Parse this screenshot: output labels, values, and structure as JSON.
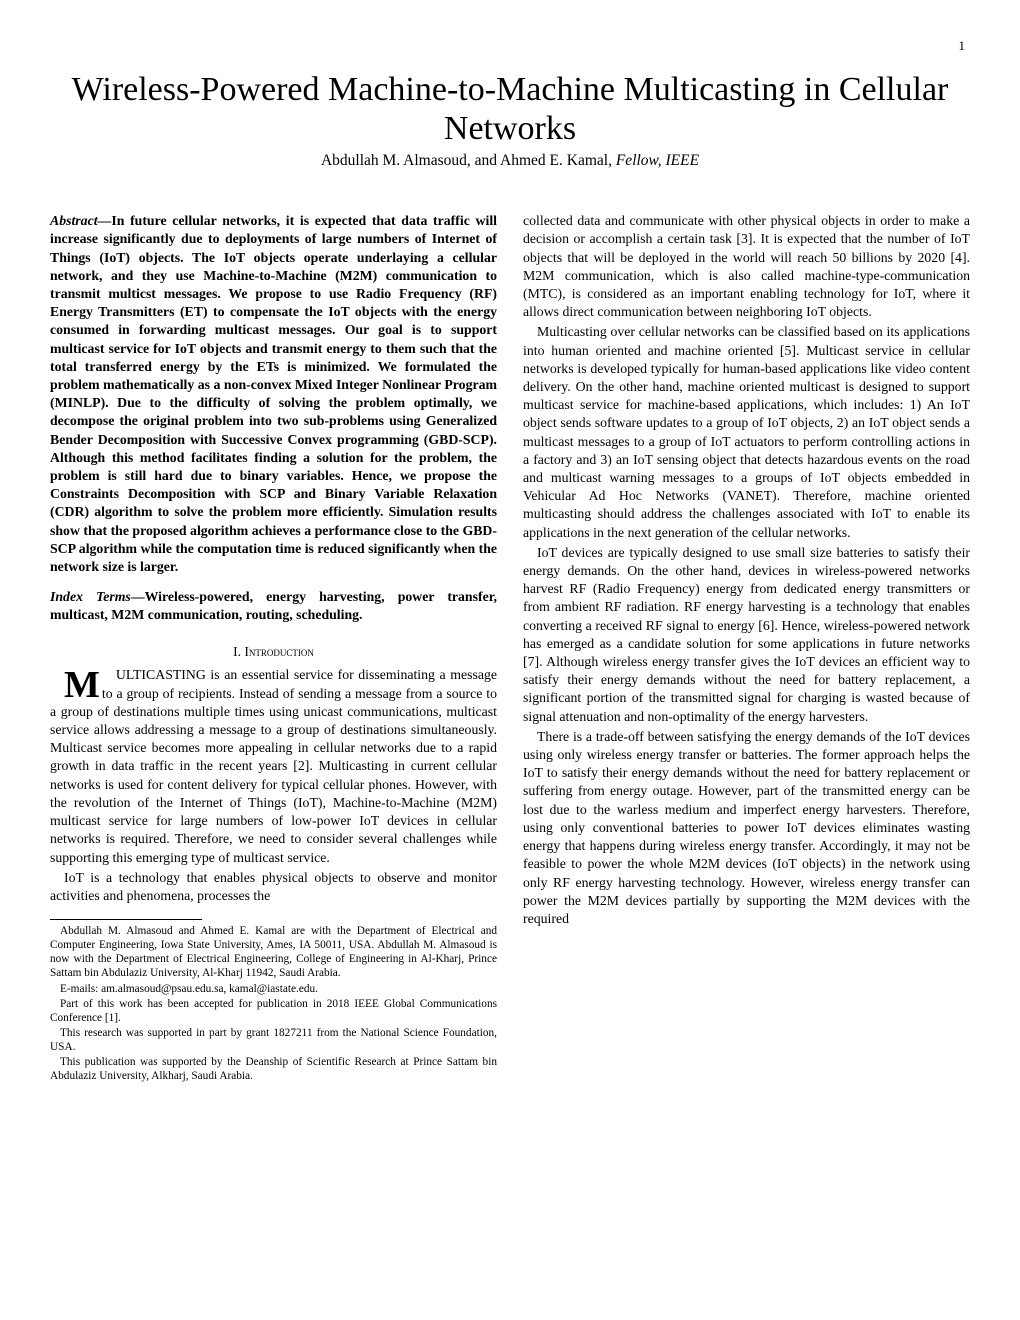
{
  "page_number": "1",
  "title": "Wireless-Powered Machine-to-Machine Multicasting in Cellular Networks",
  "authors_line_prefix": "Abdullah M. Almasoud, and Ahmed E. Kamal, ",
  "authors_fellow": "Fellow, IEEE",
  "abstract_label": "Abstract",
  "abstract_text": "—In future cellular networks, it is expected that data traffic will increase significantly due to deployments of large numbers of Internet of Things (IoT) objects. The IoT objects operate underlaying a cellular network, and they use Machine-to-Machine (M2M) communication to transmit multicst messages. We propose to use Radio Frequency (RF) Energy Transmitters (ET) to compensate the IoT objects with the energy consumed in forwarding multicast messages. Our goal is to support multicast service for IoT objects and transmit energy to them such that the total transferred energy by the ETs is minimized. We formulated the problem mathematically as a non-convex Mixed Integer Nonlinear Program (MINLP). Due to the difficulty of solving the problem optimally, we decompose the original problem into two sub-problems using Generalized Bender Decomposition with Successive Convex programming (GBD-SCP). Although this method facilitates finding a solution for the problem, the problem is still hard due to binary variables. Hence, we propose the Constraints Decomposition with SCP and Binary Variable Relaxation (CDR) algorithm to solve the problem more efficiently. Simulation results show that the proposed algorithm achieves a performance close to the GBD-SCP algorithm while the computation time is reduced significantly when the network size is larger.",
  "index_terms_label": "Index Terms",
  "index_terms_text": "—Wireless-powered, energy harvesting, power transfer, multicast, M2M communication, routing, scheduling.",
  "section1_heading": "I.  Introduction",
  "intro_p1": "MULTICASTING is an essential service for disseminating a message to a group of recipients. Instead of sending a message from a source to a group of destinations multiple times using unicast communications, multicast service allows addressing a message to a group of destinations simultaneously. Multicast service becomes more appealing in cellular networks due to a rapid growth in data traffic in the recent years [2]. Multicasting in current cellular networks is used for content delivery for typical cellular phones. However, with the revolution of the Internet of Things (IoT), Machine-to-Machine (M2M) multicast service for large numbers of low-power IoT devices in cellular networks is required. Therefore, we need to consider several challenges while supporting this emerging type of multicast service.",
  "intro_p2": "IoT is a technology that enables physical objects to observe and monitor activities and phenomena, processes the",
  "footnote1": "Abdullah M. Almasoud and Ahmed E. Kamal are with the Department of Electrical and Computer Engineering, Iowa State University, Ames, IA 50011, USA. Abdullah M. Almasoud is now with the Department of Electrical Engineering, College of Engineering in Al-Kharj, Prince Sattam bin Abdulaziz University, Al-Kharj 11942, Saudi Arabia.",
  "footnote2": "E-mails: am.almasoud@psau.edu.sa, kamal@iastate.edu.",
  "footnote3": "Part of this work has been accepted for publication in 2018 IEEE Global Communications Conference [1].",
  "footnote4": "This research was supported in part by grant 1827211 from the National Science Foundation, USA.",
  "footnote5": "This publication was supported by the Deanship of Scientific Research at Prince Sattam bin Abdulaziz University, Alkharj, Saudi Arabia.",
  "col2_p1": "collected data and communicate with other physical objects in order to make a decision or accomplish a certain task [3]. It is expected that the number of IoT objects that will be deployed in the world will reach 50 billions by 2020 [4]. M2M communication, which is also called machine-type-communication (MTC), is considered as an important enabling technology for IoT, where it allows direct communication between neighboring IoT objects.",
  "col2_p2": "Multicasting over cellular networks can be classified based on its applications into human oriented and machine oriented [5]. Multicast service in cellular networks is developed typically for human-based applications like video content delivery. On the other hand, machine oriented multicast is designed to support multicast service for machine-based applications, which includes: 1) An IoT object sends software updates to a group of IoT objects, 2) an IoT object sends a multicast messages to a group of IoT actuators to perform controlling actions in a factory and 3) an IoT sensing object that detects hazardous events on the road and multicast warning messages to a groups of IoT objects embedded in Vehicular Ad Hoc Networks (VANET). Therefore, machine oriented multicasting should address the challenges associated with IoT to enable its applications in the next generation of the cellular networks.",
  "col2_p3": "IoT devices are typically designed to use small size batteries to satisfy their energy demands. On the other hand, devices in wireless-powered networks harvest RF (Radio Frequency) energy from dedicated energy transmitters or from ambient RF radiation. RF energy harvesting is a technology that enables converting a received RF signal to energy [6]. Hence, wireless-powered network has emerged as a candidate solution for some applications in future networks [7]. Although wireless energy transfer gives the IoT devices an efficient way to satisfy their energy demands without the need for battery replacement, a significant portion of the transmitted signal for charging is wasted because of signal attenuation and non-optimality of the energy harvesters.",
  "col2_p4": "There is a trade-off between satisfying the energy demands of the IoT devices using only wireless energy transfer or batteries. The former approach helps the IoT to satisfy their energy demands without the need for battery replacement or suffering from energy outage. However, part of the transmitted energy can be lost due to the warless medium and imperfect energy harvesters. Therefore, using only conventional batteries to power IoT devices eliminates wasting energy that happens during wireless energy transfer. Accordingly, it may not be feasible to power the whole M2M devices (IoT objects) in the network using only RF energy harvesting technology. However, wireless energy transfer can power the M2M devices partially by supporting the M2M devices with the required"
}
